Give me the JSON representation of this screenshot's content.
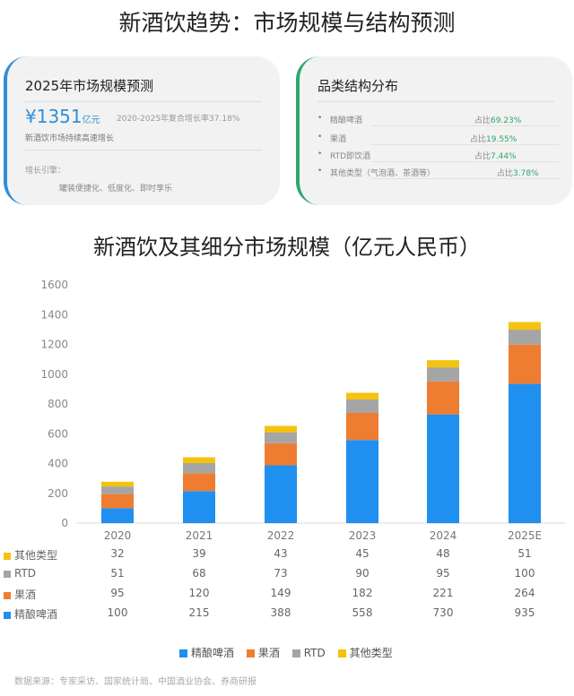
{
  "page": {
    "title": "新酒饮趋势：市场规模与结构预测",
    "source": "数据来源：专家采访、国家统计局、中国酒业协会、券商研报"
  },
  "forecast_card": {
    "title": "2025年市场规模预测",
    "value": "¥1351",
    "unit": "亿元",
    "cagr": "2020-2025年复合增长率37.18%",
    "note": "新酒饮市场持续高速增长",
    "engine_label": "增长引擎：",
    "engine_value": "罐装便捷化、低度化、即时享乐"
  },
  "structure_card": {
    "title": "品类结构分布",
    "items": [
      {
        "name": "精酿啤酒",
        "share_label": "占比",
        "share": "69.23%"
      },
      {
        "name": "果酒",
        "share_label": "占比",
        "share": "19.55%"
      },
      {
        "name": "RTD即饮酒",
        "share_label": "占比",
        "share": "7.44%"
      },
      {
        "name": "其他类型（气泡酒、茶酒等）",
        "share_label": "占比",
        "share": "3.78%"
      }
    ]
  },
  "chart_data": {
    "type": "bar",
    "stacked": true,
    "title": "新酒饮及其细分市场规模（亿元人民币）",
    "categories": [
      "2020",
      "2021",
      "2022",
      "2023",
      "2024",
      "2025E"
    ],
    "ylim": [
      0,
      1600
    ],
    "yticks": [
      "0",
      "200",
      "400",
      "600",
      "800",
      "1000",
      "1200",
      "1400",
      "1600"
    ],
    "grid": false,
    "legend_position": "bottom",
    "series": [
      {
        "name": "精酿啤酒",
        "color": "#1f8ff0",
        "values": [
          100,
          215,
          388,
          558,
          730,
          935
        ]
      },
      {
        "name": "果酒",
        "color": "#ee7d31",
        "values": [
          95,
          120,
          149,
          182,
          221,
          264
        ]
      },
      {
        "name": "RTD",
        "color": "#a5a5a5",
        "values": [
          51,
          68,
          73,
          90,
          95,
          100
        ]
      },
      {
        "name": "其他类型",
        "color": "#f5c20e",
        "values": [
          32,
          39,
          43,
          45,
          48,
          51
        ]
      }
    ]
  },
  "table": {
    "rows": [
      {
        "label": "其他类型",
        "color": "#f5c20e",
        "values": [
          "32",
          "39",
          "43",
          "45",
          "48",
          "51"
        ]
      },
      {
        "label": "RTD",
        "color": "#a5a5a5",
        "values": [
          "51",
          "68",
          "73",
          "90",
          "95",
          "100"
        ]
      },
      {
        "label": "果酒",
        "color": "#ee7d31",
        "values": [
          "95",
          "120",
          "149",
          "182",
          "221",
          "264"
        ]
      },
      {
        "label": "精酿啤酒",
        "color": "#1f8ff0",
        "values": [
          "100",
          "215",
          "388",
          "558",
          "730",
          "935"
        ]
      }
    ]
  }
}
